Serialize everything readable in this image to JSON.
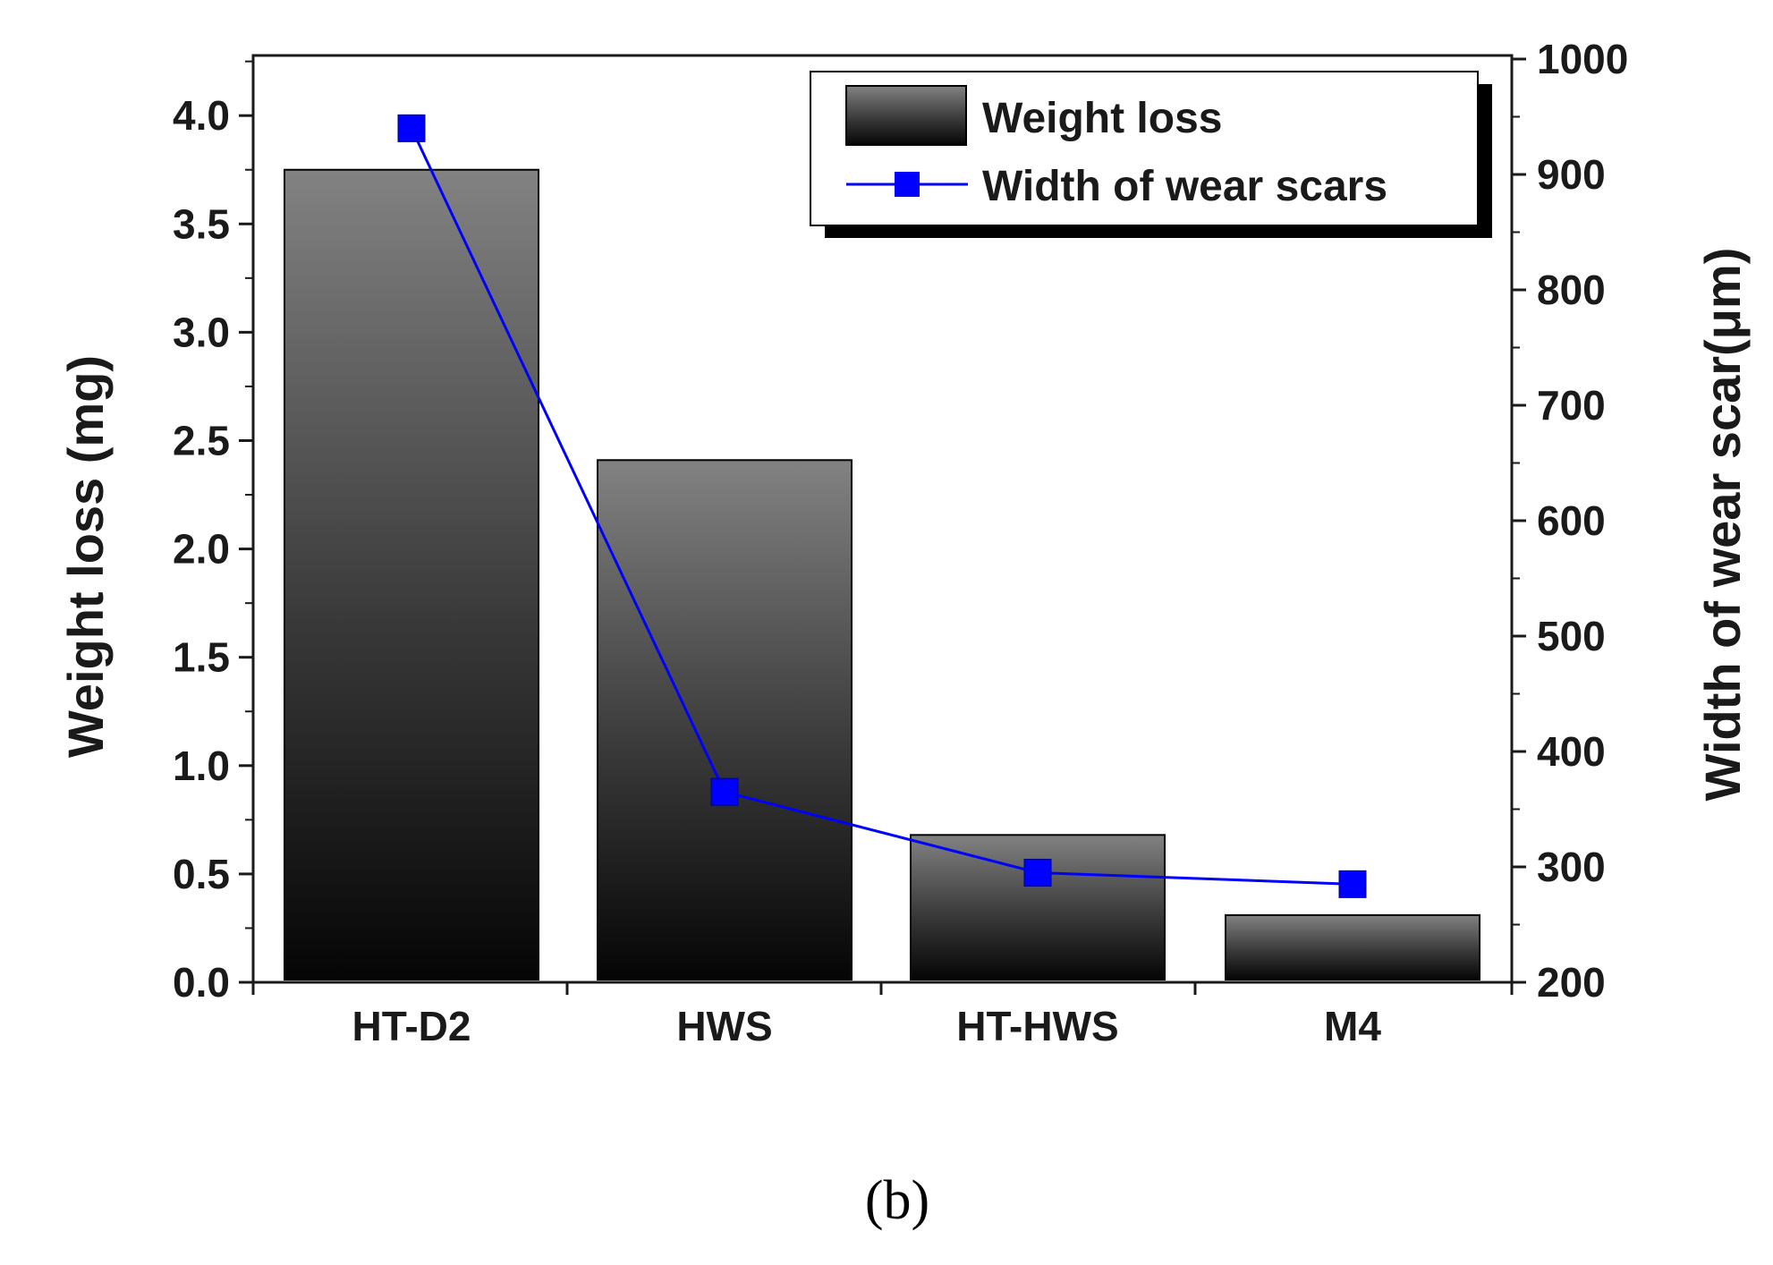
{
  "chart_data": {
    "type": "bar",
    "categories": [
      "HT-D2",
      "HWS",
      "HT-HWS",
      "M4"
    ],
    "series": [
      {
        "name": "Weight loss",
        "kind": "bar",
        "axis": "left",
        "values": [
          3.75,
          2.41,
          0.68,
          0.31
        ],
        "color": "#6e6e6e"
      },
      {
        "name": "Width of wear scars",
        "kind": "line",
        "axis": "right",
        "values": [
          940,
          365,
          295,
          285
        ],
        "color": "#0000ff"
      }
    ],
    "ylabel": "Weight loss (mg)",
    "y2label": "Width of wear scar(μm)",
    "ylim": [
      0,
      4.25
    ],
    "y2lim": [
      200,
      1000
    ],
    "yticks": [
      "0.0",
      "0.5",
      "1.0",
      "1.5",
      "2.0",
      "2.5",
      "3.0",
      "3.5",
      "4.0"
    ],
    "y2ticks": [
      "200",
      "300",
      "400",
      "500",
      "600",
      "700",
      "800",
      "900",
      "1000"
    ],
    "legend_position": "top-right",
    "grid": false
  },
  "caption": "(b)"
}
